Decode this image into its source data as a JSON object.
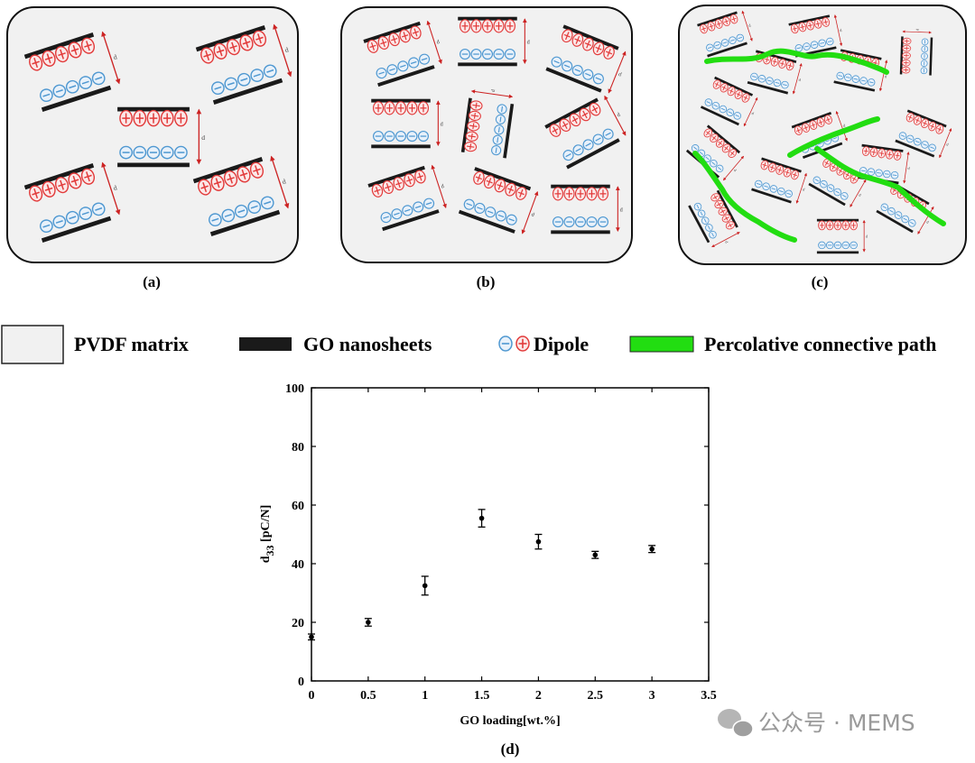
{
  "panels": [
    {
      "label": "(a)"
    },
    {
      "label": "(b)"
    },
    {
      "label": "(c)"
    }
  ],
  "dim_symbol": "d",
  "legend": {
    "matrix": "PVDF matrix",
    "nanosheets": "GO nanosheets",
    "dipole": "Dipole",
    "path": "Percolative connective path"
  },
  "colors": {
    "matrix_fill": "#f1f1f1",
    "nanosheet": "#1a1a1a",
    "positive_dipole": "#e23b3b",
    "negative_dipole": "#4f98d1",
    "percolation_path": "#22dd11",
    "dimension_arrow": "#cc2222"
  },
  "chart_data": {
    "type": "scatter",
    "panel_label": "(d)",
    "xlabel": "GO loading[wt.%]",
    "ylabel_main": "d",
    "ylabel_sub": "33",
    "ylabel_unit": " [pC/N]",
    "xlim": [
      0,
      3.5
    ],
    "ylim": [
      0,
      100
    ],
    "xticks": [
      0,
      0.5,
      1,
      1.5,
      2,
      2.5,
      3,
      3.5
    ],
    "xtick_labels": [
      "0",
      "0.5",
      "1",
      "1.5",
      "2",
      "2.5",
      "3",
      "3.5"
    ],
    "yticks": [
      0,
      20,
      40,
      60,
      80,
      100
    ],
    "ytick_labels": [
      "0",
      "20",
      "40",
      "60",
      "80",
      "100"
    ],
    "grid": false,
    "points": [
      {
        "x": 0,
        "y": 15,
        "err": 1
      },
      {
        "x": 0.5,
        "y": 20,
        "err": 1.3
      },
      {
        "x": 1,
        "y": 32.5,
        "err": 3.2
      },
      {
        "x": 1.5,
        "y": 55.5,
        "err": 3
      },
      {
        "x": 2,
        "y": 47.5,
        "err": 2.5
      },
      {
        "x": 2.5,
        "y": 43,
        "err": 1.2
      },
      {
        "x": 3,
        "y": 45,
        "err": 1.2
      }
    ]
  },
  "watermark": "公众号 · MEMS"
}
